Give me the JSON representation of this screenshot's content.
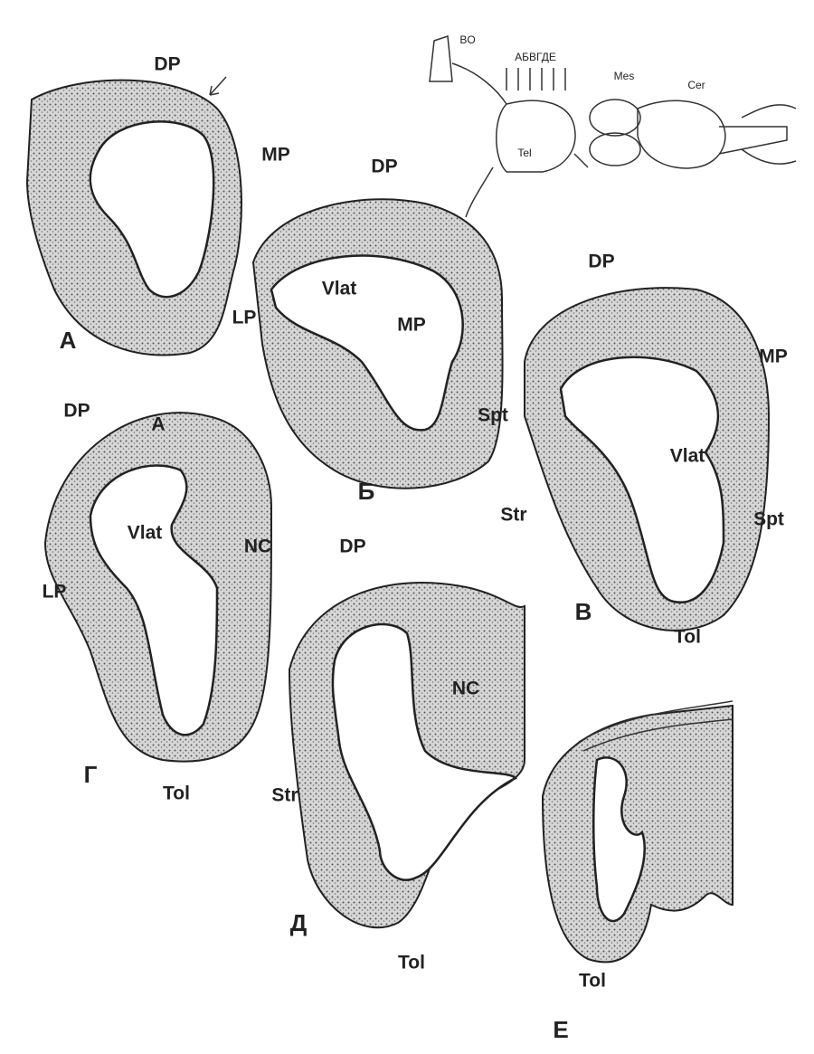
{
  "panels": [
    {
      "letter": "А",
      "labels": [
        "DP",
        "MP",
        "LP"
      ]
    },
    {
      "letter": "Б",
      "labels": [
        "DP",
        "Vlat",
        "MP",
        "Spt"
      ]
    },
    {
      "letter": "В",
      "labels": [
        "DP",
        "MP",
        "Vlat",
        "Str",
        "Spt",
        "Tol"
      ]
    },
    {
      "letter": "Г",
      "labels": [
        "DP",
        "А",
        "Vlat",
        "NC",
        "LP",
        "Tol"
      ]
    },
    {
      "letter": "Д",
      "labels": [
        "DP",
        "NC",
        "Str",
        "Tol"
      ]
    },
    {
      "letter": "Е",
      "labels": [
        "Tol"
      ]
    }
  ],
  "inset": {
    "labels": [
      "BO",
      "АБВГДЕ",
      "Tel",
      "Mes",
      "Cer"
    ]
  }
}
